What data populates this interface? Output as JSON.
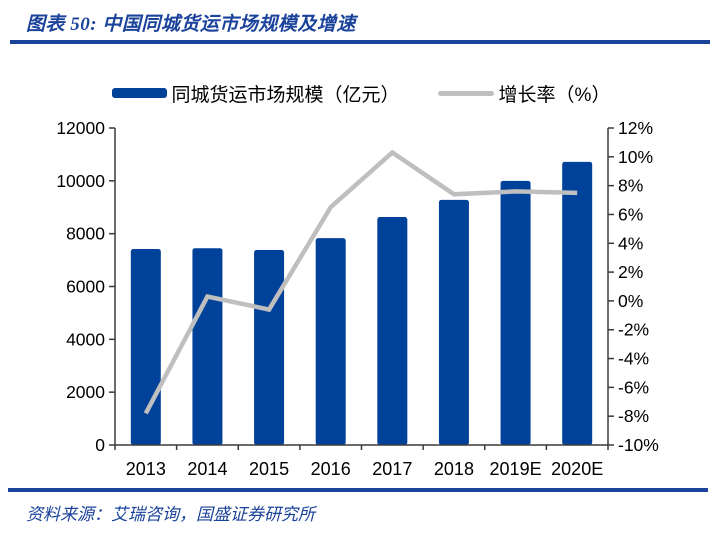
{
  "header": {
    "title": "图表 50:  中国同城货运市场规模及增速"
  },
  "footer": {
    "source": "资料来源：艾瑞咨询，国盛证券研究所"
  },
  "colors": {
    "accent": "#1B439B",
    "axis": "#3a3a3a",
    "tick_label": "#000000"
  },
  "chart_data": {
    "type": "bar",
    "title": "中国同城货运市场规模及增速",
    "categories": [
      "2013",
      "2014",
      "2015",
      "2016",
      "2017",
      "2018",
      "2019E",
      "2020E"
    ],
    "series": [
      {
        "name": "同城货运市场规模（亿元）",
        "type": "bar",
        "axis": "left",
        "color": "#00419A",
        "values": [
          7420,
          7450,
          7380,
          7830,
          8630,
          9280,
          10000,
          10720
        ]
      },
      {
        "name": "增长率（%）",
        "type": "line",
        "axis": "right",
        "color": "#BFBFBF",
        "values": [
          -7.8,
          0.3,
          -0.6,
          6.5,
          10.3,
          7.4,
          7.6,
          7.5
        ]
      }
    ],
    "left_axis": {
      "min": 0,
      "max": 12000,
      "step": 2000
    },
    "right_axis": {
      "min": -10,
      "max": 12,
      "step": 2,
      "suffix": "%"
    },
    "grid": false,
    "legend_position": "top"
  }
}
